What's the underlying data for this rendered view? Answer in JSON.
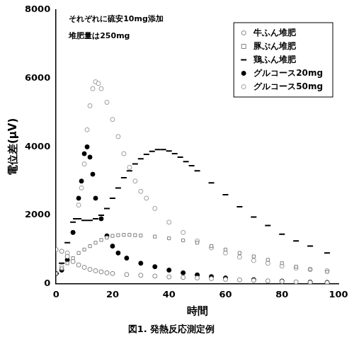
{
  "chart_data": {
    "type": "scatter",
    "title": "図1. 発熱反応測定例",
    "x_label": "時間",
    "y_label": "電位差(μV)",
    "annotations": [
      "それぞれに硫安10mg添加",
      "堆肥量は250mg"
    ],
    "xlim": [
      0,
      100
    ],
    "xticks": [
      0,
      20,
      40,
      60,
      80,
      100
    ],
    "ylim": [
      0,
      8000
    ],
    "yticks": [
      0,
      2000,
      4000,
      6000,
      8000
    ],
    "grid": false,
    "legend": "upper right",
    "series": [
      {
        "name": "牛ふん堆肥",
        "color": "#808080",
        "marker": "open_circle",
        "x": [
          0,
          2,
          4,
          6,
          8,
          10,
          12,
          14,
          16,
          18,
          20,
          25,
          30,
          35,
          40,
          45,
          50,
          55,
          60,
          65,
          70,
          75,
          80,
          85,
          90,
          96
        ],
        "values": [
          1000,
          950,
          800,
          650,
          550,
          480,
          420,
          380,
          350,
          320,
          300,
          270,
          250,
          225,
          200,
          185,
          170,
          150,
          130,
          115,
          100,
          85,
          70,
          55,
          40,
          30
        ]
      },
      {
        "name": "豚ぷん堆肥",
        "color": "#808080",
        "marker": "open_square",
        "x": [
          0,
          2,
          4,
          6,
          8,
          10,
          12,
          14,
          16,
          18,
          20,
          22,
          24,
          26,
          28,
          30,
          35,
          40,
          45,
          50,
          55,
          60,
          65,
          70,
          75,
          80,
          85,
          90,
          96
        ],
        "values": [
          300,
          450,
          600,
          750,
          900,
          1000,
          1100,
          1200,
          1280,
          1350,
          1400,
          1420,
          1430,
          1430,
          1420,
          1410,
          1380,
          1330,
          1270,
          1200,
          1100,
          1000,
          900,
          800,
          700,
          600,
          500,
          420,
          350
        ]
      },
      {
        "name": "鶏ふん堆肥",
        "color": "#000000",
        "marker": "dash",
        "x": [
          0,
          2,
          4,
          6,
          7,
          8,
          10,
          12,
          14,
          16,
          18,
          20,
          22,
          24,
          26,
          28,
          30,
          32,
          34,
          36,
          38,
          40,
          42,
          44,
          46,
          48,
          50,
          55,
          60,
          65,
          70,
          75,
          80,
          85,
          90,
          96
        ],
        "values": [
          300,
          600,
          1200,
          1800,
          1900,
          1900,
          1850,
          1850,
          1900,
          2000,
          2200,
          2500,
          2800,
          3100,
          3300,
          3500,
          3650,
          3780,
          3870,
          3920,
          3920,
          3880,
          3800,
          3700,
          3570,
          3450,
          3300,
          2950,
          2600,
          2250,
          1950,
          1700,
          1450,
          1250,
          1100,
          900
        ]
      },
      {
        "name": "グルコース20mg",
        "color": "#000000",
        "marker": "circle",
        "x": [
          0,
          2,
          4,
          6,
          8,
          9,
          10,
          11,
          12,
          13,
          14,
          16,
          18,
          20,
          22,
          25,
          30,
          35,
          40,
          45,
          50,
          55,
          60,
          70,
          80,
          90,
          96
        ],
        "values": [
          300,
          400,
          700,
          1500,
          2500,
          3000,
          3800,
          4000,
          3700,
          3200,
          2500,
          1900,
          1400,
          1100,
          900,
          750,
          600,
          500,
          400,
          320,
          260,
          210,
          170,
          120,
          80,
          50,
          40
        ]
      },
      {
        "name": "グルコース50mg",
        "color": "#999999",
        "marker": "open_circle",
        "x": [
          0,
          2,
          4,
          6,
          8,
          9,
          10,
          11,
          12,
          13,
          14,
          15,
          16,
          18,
          20,
          22,
          24,
          26,
          28,
          30,
          32,
          35,
          40,
          45,
          50,
          55,
          60,
          65,
          70,
          75,
          80,
          85,
          90,
          96
        ],
        "values": [
          300,
          500,
          900,
          1500,
          2300,
          2800,
          3500,
          4500,
          5200,
          5700,
          5900,
          5850,
          5700,
          5300,
          4800,
          4300,
          3800,
          3400,
          3000,
          2700,
          2500,
          2200,
          1800,
          1500,
          1250,
          1050,
          900,
          780,
          680,
          600,
          520,
          460,
          420,
          380
        ]
      }
    ]
  }
}
